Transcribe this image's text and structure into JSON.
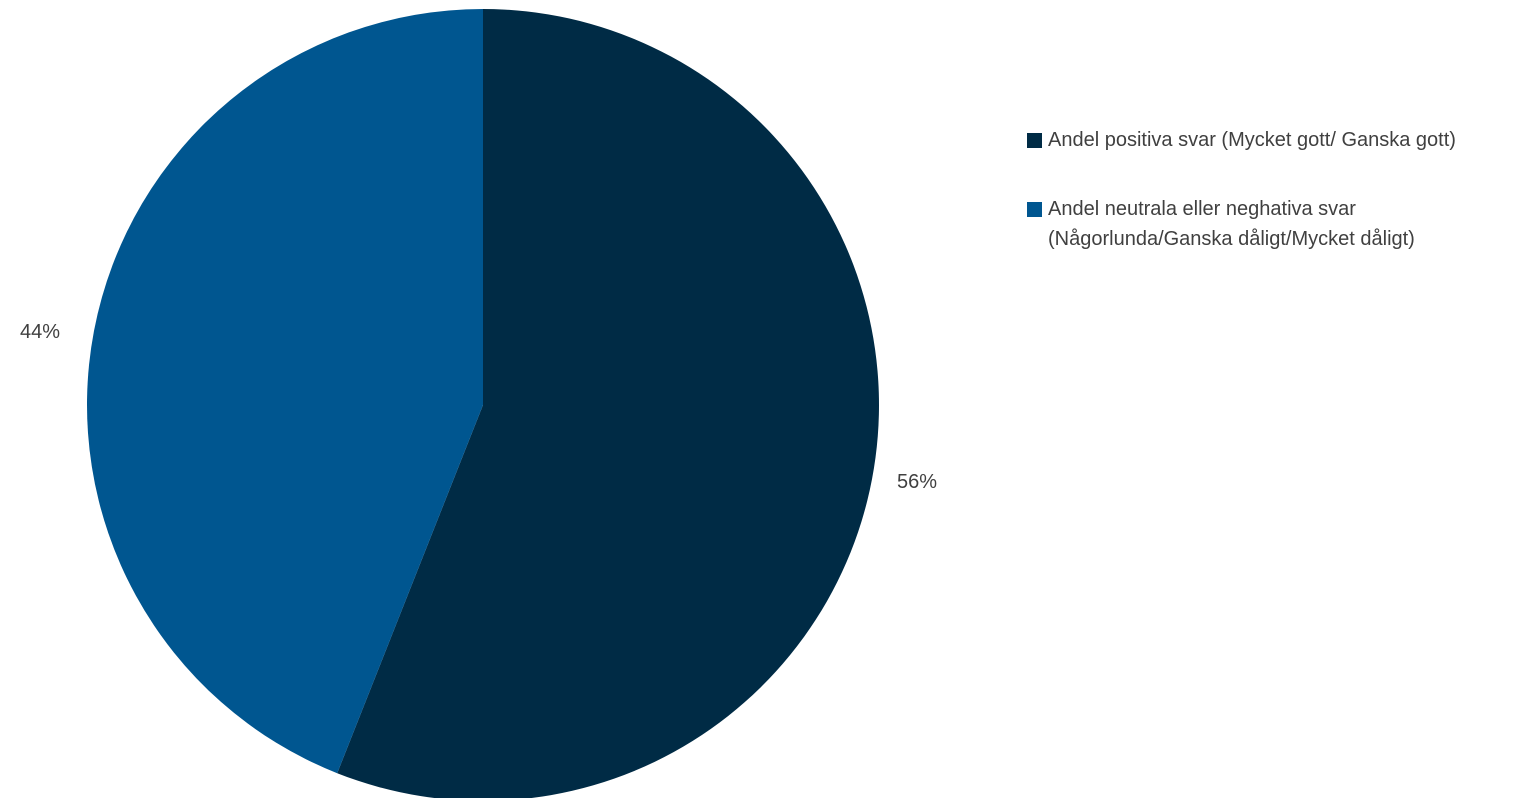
{
  "chart_data": {
    "type": "pie",
    "slices": [
      {
        "label": "Andel positiva svar (Mycket gott/ Ganska gott)",
        "value": 56,
        "display": "56%",
        "color": "#002b45"
      },
      {
        "label": "Andel neutrala eller neghativa svar (Någorlunda/Ganska dåligt/Mycket dåligt)",
        "value": 44,
        "display": "44%",
        "color": "#005690"
      }
    ],
    "start_angle": "12 o'clock",
    "direction": "clockwise",
    "legend_position": "right"
  }
}
